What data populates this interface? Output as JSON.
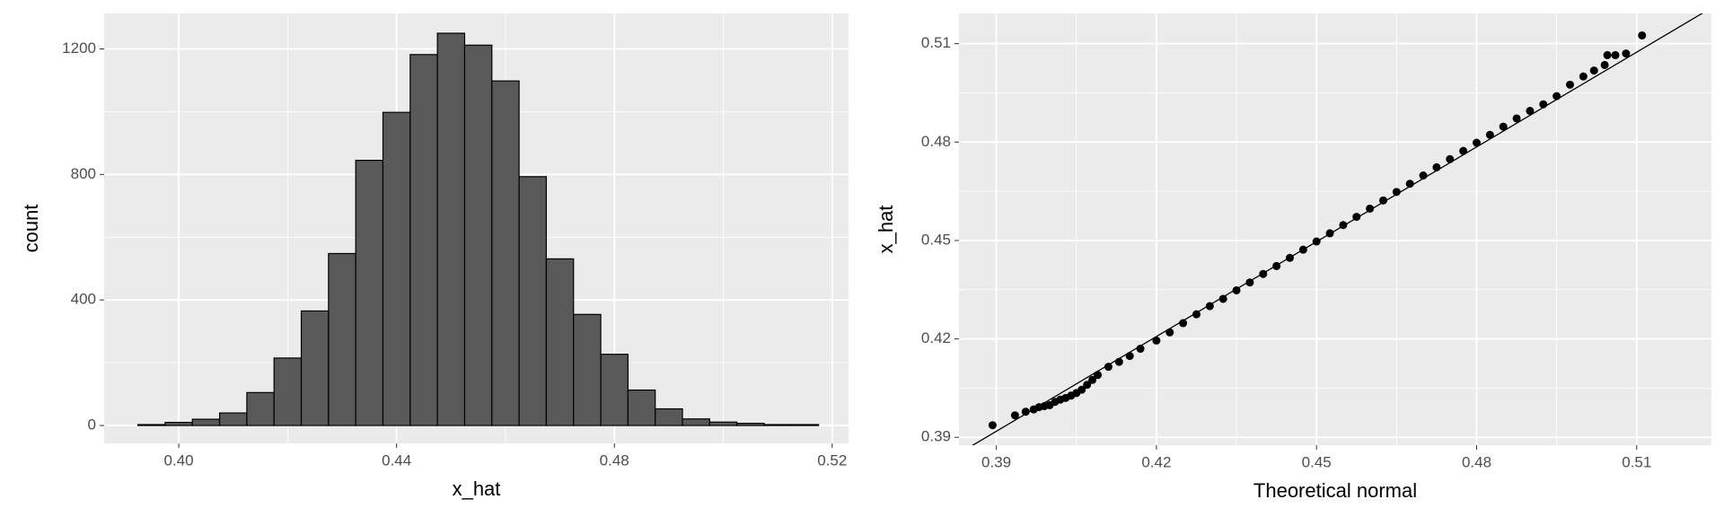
{
  "chart_data": [
    {
      "type": "histogram",
      "x_label": "x_hat",
      "y_label": "count",
      "bins": [
        0.3925,
        0.3975,
        0.4025,
        0.4075,
        0.4125,
        0.4175,
        0.4225,
        0.4275,
        0.4325,
        0.4375,
        0.4425,
        0.4475,
        0.4525,
        0.4575,
        0.4625,
        0.4675,
        0.4725,
        0.4775,
        0.4825,
        0.4875,
        0.4925,
        0.4975,
        0.5025,
        0.5075,
        0.5125,
        0.5175
      ],
      "values": [
        3,
        10,
        20,
        40,
        105,
        215,
        365,
        548,
        845,
        998,
        1182,
        1250,
        1212,
        1098,
        793,
        531,
        354,
        227,
        113,
        53,
        21,
        11,
        7,
        3,
        3
      ],
      "color": "#595959",
      "edge_color": "#000000",
      "xlim": [
        0.3863,
        0.523
      ],
      "ylim": [
        -57,
        1313
      ],
      "xticks": [
        {
          "value": 0.4,
          "label": "0.40"
        },
        0.44,
        0.48,
        0.52
      ],
      "yticks": [
        0,
        400,
        800,
        1200
      ],
      "x_minor_ticks": [
        0.42,
        0.46,
        0.5
      ],
      "y_minor_ticks": [
        200,
        600,
        1000
      ],
      "grid": true
    },
    {
      "type": "scatter",
      "x_label": "Theoretical normal",
      "y_label": "x_hat",
      "x": [
        0.3893,
        0.3935,
        0.3955,
        0.397,
        0.398,
        0.399,
        0.4,
        0.401,
        0.402,
        0.403,
        0.404,
        0.405,
        0.406,
        0.407,
        0.408,
        0.409,
        0.411,
        0.413,
        0.415,
        0.417,
        0.42,
        0.4225,
        0.425,
        0.4275,
        0.43,
        0.4325,
        0.435,
        0.4375,
        0.44,
        0.4425,
        0.445,
        0.4475,
        0.45,
        0.4525,
        0.455,
        0.4575,
        0.46,
        0.4625,
        0.465,
        0.4675,
        0.47,
        0.4725,
        0.475,
        0.4775,
        0.48,
        0.4825,
        0.485,
        0.4875,
        0.49,
        0.4925,
        0.495,
        0.4975,
        0.5,
        0.502,
        0.504,
        0.5045,
        0.506,
        0.508,
        0.511
      ],
      "values": [
        0.3937,
        0.3967,
        0.3978,
        0.3985,
        0.3992,
        0.3995,
        0.3998,
        0.4008,
        0.4015,
        0.402,
        0.4027,
        0.4035,
        0.4045,
        0.406,
        0.4075,
        0.409,
        0.4115,
        0.413,
        0.4148,
        0.417,
        0.4195,
        0.422,
        0.4248,
        0.4275,
        0.43,
        0.4322,
        0.4348,
        0.4372,
        0.4398,
        0.4422,
        0.4447,
        0.4472,
        0.4497,
        0.4522,
        0.4547,
        0.4572,
        0.4597,
        0.4622,
        0.4648,
        0.4673,
        0.4698,
        0.4723,
        0.4748,
        0.4773,
        0.4798,
        0.4822,
        0.4847,
        0.4872,
        0.4895,
        0.4915,
        0.494,
        0.4975,
        0.5,
        0.5018,
        0.5035,
        0.5065,
        0.5065,
        0.507,
        0.5125
      ],
      "color": "#000000",
      "line": {
        "x": [
          0.383,
          0.524
        ],
        "values": [
          0.3851,
          0.5209
        ],
        "color": "#000000"
      },
      "xlim": [
        0.383,
        0.524
      ],
      "ylim": [
        0.3876,
        0.5192
      ],
      "xticks": [
        0.39,
        0.42,
        0.45,
        0.48,
        0.51
      ],
      "yticks": [
        0.39,
        0.42,
        0.45,
        0.48,
        0.51
      ],
      "x_minor_ticks": [
        0.405,
        0.435,
        0.465,
        0.495
      ],
      "y_minor_ticks": [
        0.405,
        0.435,
        0.465,
        0.495
      ],
      "grid": true
    }
  ]
}
